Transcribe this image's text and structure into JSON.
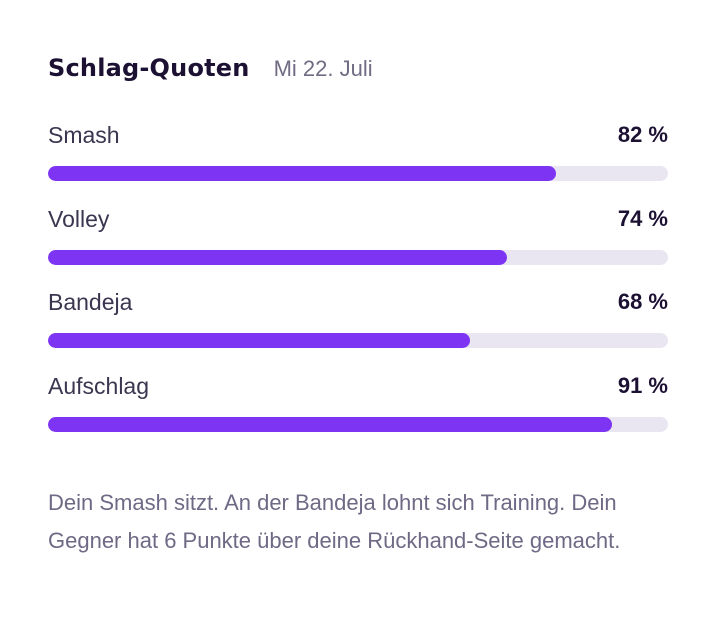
{
  "card": {
    "title": "Schlag-Quoten",
    "date": "Mi 22. Juli"
  },
  "shots": [
    {
      "label": "Smash",
      "value_text": "82 %",
      "percent": 82
    },
    {
      "label": "Volley",
      "value_text": "74 %",
      "percent": 74
    },
    {
      "label": "Bandeja",
      "value_text": "68 %",
      "percent": 68
    },
    {
      "label": "Aufschlag",
      "value_text": "91 %",
      "percent": 91
    }
  ],
  "note": "Dein Smash sitzt. An der Bandeja lohnt sich Training. Dein Gegner hat 6 Punkte über deine Rückhand-Seite gemacht.",
  "colors": {
    "bar_fill": "#7e35f3",
    "bar_track": "#e9e6f2",
    "title": "#1c1133",
    "muted_text": "#6f6985"
  }
}
